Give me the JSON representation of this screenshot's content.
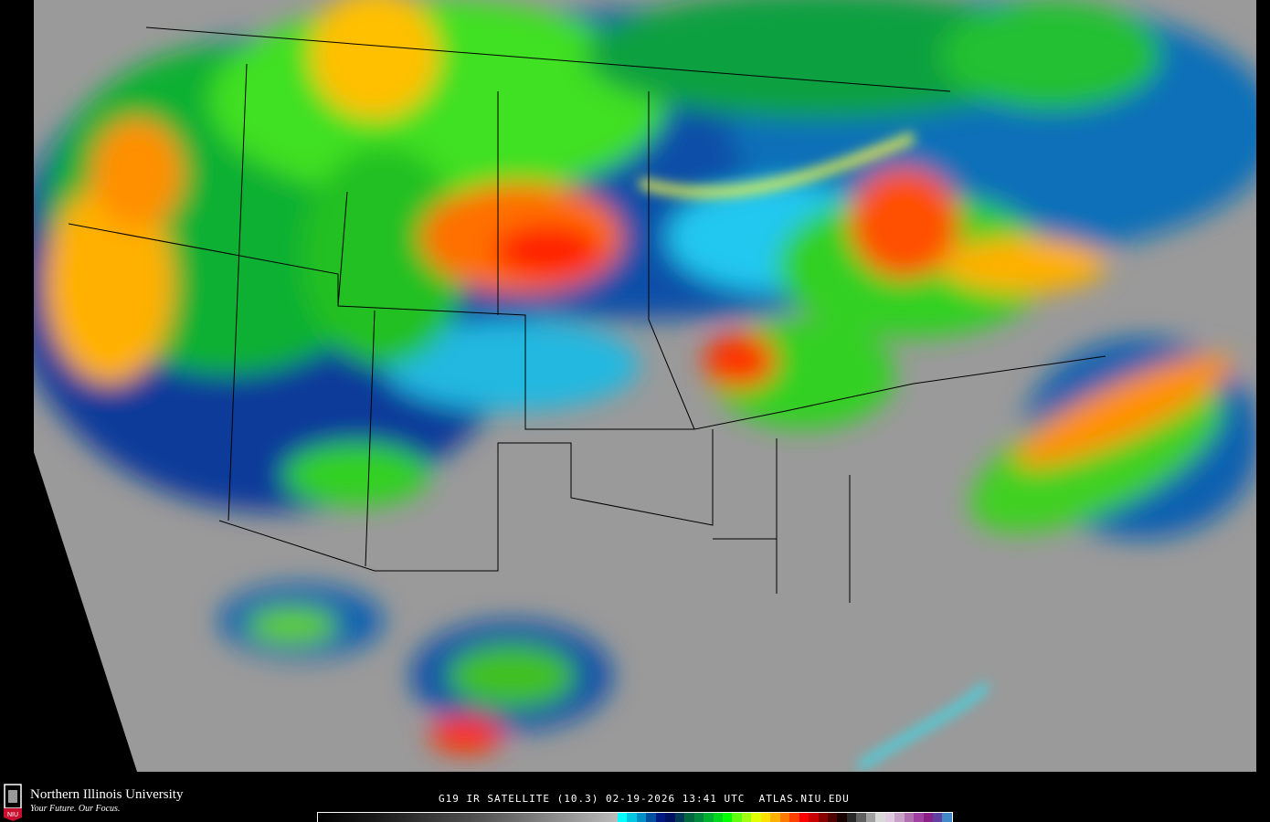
{
  "product": {
    "caption": "G19 IR SATELLITE (10.3) 02-19-2026 13:41 UTC  ATLAS.NIU.EDU"
  },
  "branding": {
    "university": "Northern Illinois University",
    "tagline": "Your Future. Our Focus.",
    "logo_text": "NIU",
    "logo_color": "#c8102e"
  },
  "colorbar": {
    "gray_range": [
      "#000000",
      "#bbbbbb"
    ],
    "colors": [
      "#00ffff",
      "#00c8e0",
      "#0090c8",
      "#0050a0",
      "#001880",
      "#001060",
      "#003858",
      "#006840",
      "#008840",
      "#00b030",
      "#00d820",
      "#00ff00",
      "#60ff10",
      "#a0ff10",
      "#e0ff00",
      "#ffe000",
      "#ffb000",
      "#ff7800",
      "#ff4000",
      "#ff0000",
      "#c80000",
      "#880000",
      "#500000",
      "#180000",
      "#282828",
      "#606060",
      "#a0a0a0",
      "#d8d8d8",
      "#e0c8e0",
      "#c8a0c8",
      "#b070b0",
      "#a040a0",
      "#882088",
      "#6040a0",
      "#4088c8"
    ]
  }
}
